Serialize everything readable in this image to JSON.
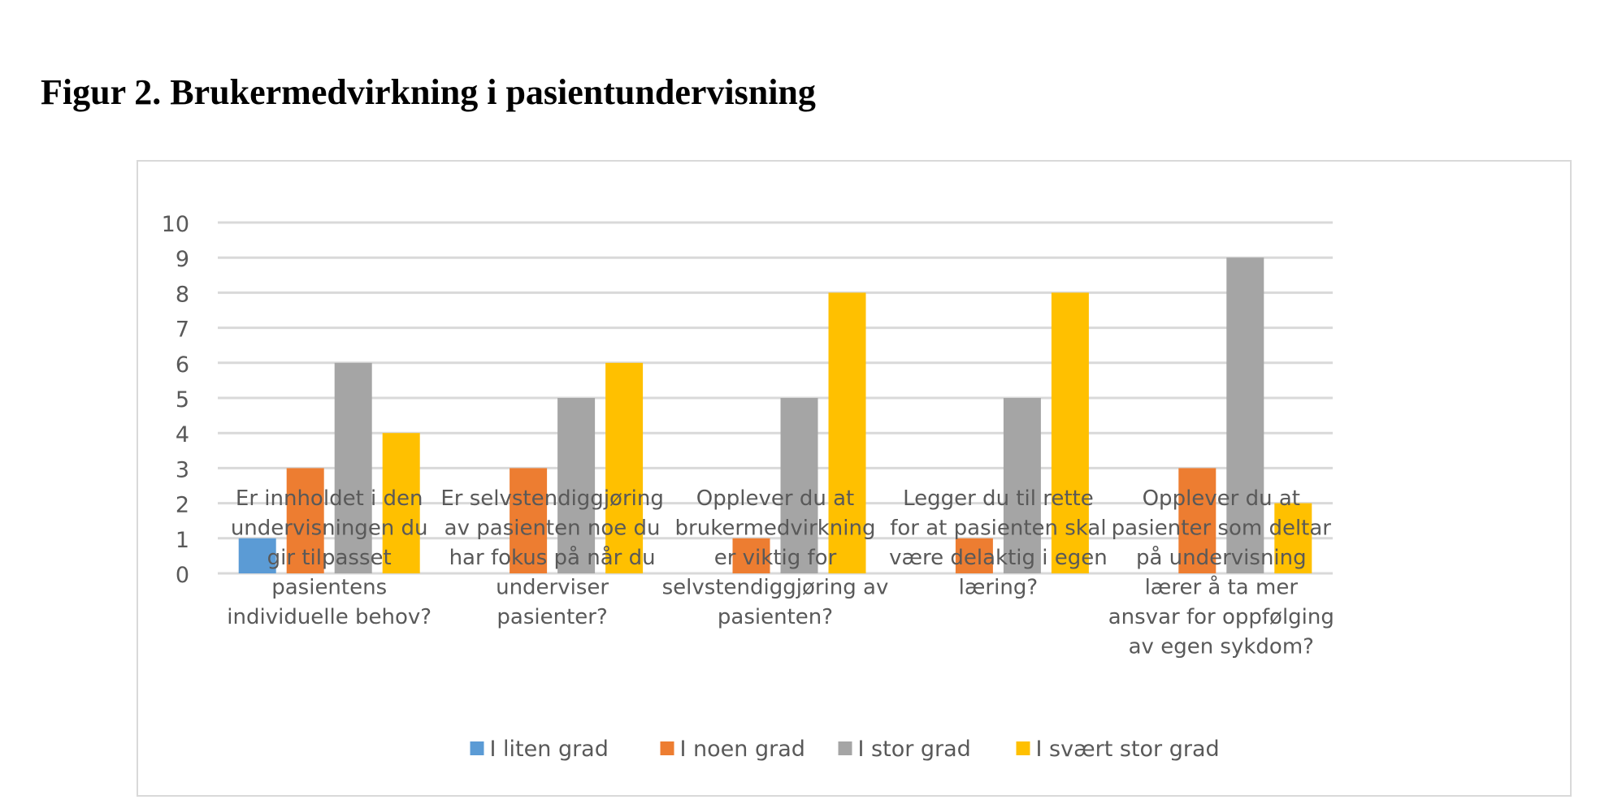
{
  "figure_title": "Figur 2. Brukermedvirkning i pasientundervisning",
  "chart_data": {
    "type": "bar",
    "title": "",
    "xlabel": "",
    "ylabel": "",
    "ylim": [
      0,
      10
    ],
    "yticks": [
      "0",
      "1",
      "2",
      "3",
      "4",
      "5",
      "6",
      "7",
      "8",
      "9",
      "10"
    ],
    "grid": true,
    "legend_position": "bottom",
    "categories": [
      [
        "Er innholdet i den",
        "undervisningen du",
        "gir tilpasset",
        "pasientens",
        "individuelle behov?"
      ],
      [
        "Er selvstendiggjøring",
        "av pasienten noe du",
        "har fokus på når du",
        "underviser",
        "pasienter?"
      ],
      [
        "Opplever du at",
        "brukermedvirkning",
        "er viktig for",
        "selvstendiggjøring av",
        "pasienten?"
      ],
      [
        "Legger du til rette",
        "for at pasienten skal",
        "være delaktig i egen",
        "læring?"
      ],
      [
        "Opplever du at",
        "pasienter som deltar",
        "på undervisning",
        "lærer å ta mer",
        "ansvar for oppfølging",
        "av egen sykdom?"
      ]
    ],
    "series": [
      {
        "name": "I liten grad",
        "color": "#5b9bd5",
        "values": [
          1,
          0,
          0,
          0,
          0
        ]
      },
      {
        "name": "I noen grad",
        "color": "#ed7d31",
        "values": [
          3,
          3,
          1,
          1,
          3
        ]
      },
      {
        "name": "I stor grad",
        "color": "#a5a5a5",
        "values": [
          6,
          5,
          5,
          5,
          9
        ]
      },
      {
        "name": "I svært stor grad",
        "color": "#ffc000",
        "values": [
          4,
          6,
          8,
          8,
          2
        ]
      }
    ]
  }
}
